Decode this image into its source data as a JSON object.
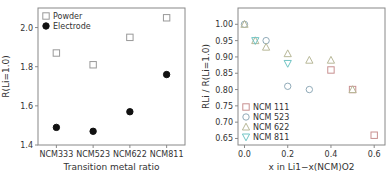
{
  "chart_data": [
    {
      "type": "scatter",
      "xlabel": "Transition metal ratio",
      "ylabel": "R(Li=1.0)",
      "categories": [
        "NCM333",
        "NCM523",
        "NCM622",
        "NCM811"
      ],
      "series": [
        {
          "name": "Powder",
          "color": "#999999",
          "marker": "square-open",
          "values": [
            1.87,
            1.81,
            1.95,
            2.05
          ]
        },
        {
          "name": "Electrode",
          "color": "#111111",
          "marker": "circle",
          "values": [
            1.49,
            1.47,
            1.57,
            1.76
          ]
        }
      ],
      "ylim": [
        1.4,
        2.1
      ],
      "yticks": [
        1.4,
        1.6,
        1.8,
        {
          "value": 2.0,
          "label": "2.0"
        }
      ],
      "legend": "upper left"
    },
    {
      "type": "scatter",
      "xlabel": "x in Li1−x(NCM)O2",
      "ylabel": "RLi / R(Li=1.0)",
      "series": [
        {
          "name": "NCM 111",
          "color": "#c89090",
          "marker": "square-open",
          "x": [
            0.4,
            0.5,
            0.6
          ],
          "values": [
            0.86,
            0.8,
            0.66
          ]
        },
        {
          "name": "NCM 523",
          "color": "#90aab8",
          "marker": "circle-open",
          "x": [
            0.0,
            0.1,
            0.2,
            0.3
          ],
          "values": [
            1.0,
            0.95,
            0.81,
            0.8
          ]
        },
        {
          "name": "NCM 622",
          "color": "#b8b898",
          "marker": "triangle-up-open",
          "x": [
            0.0,
            0.05,
            0.1,
            0.2,
            0.3,
            0.4,
            0.5
          ],
          "values": [
            1.0,
            0.95,
            0.93,
            0.91,
            0.89,
            0.89,
            0.8
          ]
        },
        {
          "name": "NCM 811",
          "color": "#70c4c4",
          "marker": "triangle-down-open",
          "x": [
            0.05,
            0.2
          ],
          "values": [
            0.95,
            0.88
          ]
        }
      ],
      "xlim": [
        -0.03,
        0.65
      ],
      "xticks": [
        {
          "value": 0.0,
          "label": "0.0"
        },
        0.2,
        0.4,
        0.6
      ],
      "ylim": [
        0.63,
        1.05
      ],
      "yticks": [
        0.65,
        {
          "value": 0.7,
          "label": "0.70"
        },
        0.75,
        {
          "value": 0.8,
          "label": "0.80"
        },
        0.85,
        {
          "value": 0.9,
          "label": "0.90"
        },
        0.95,
        {
          "value": 1.0,
          "label": "1.00"
        }
      ],
      "legend": "lower left"
    }
  ]
}
